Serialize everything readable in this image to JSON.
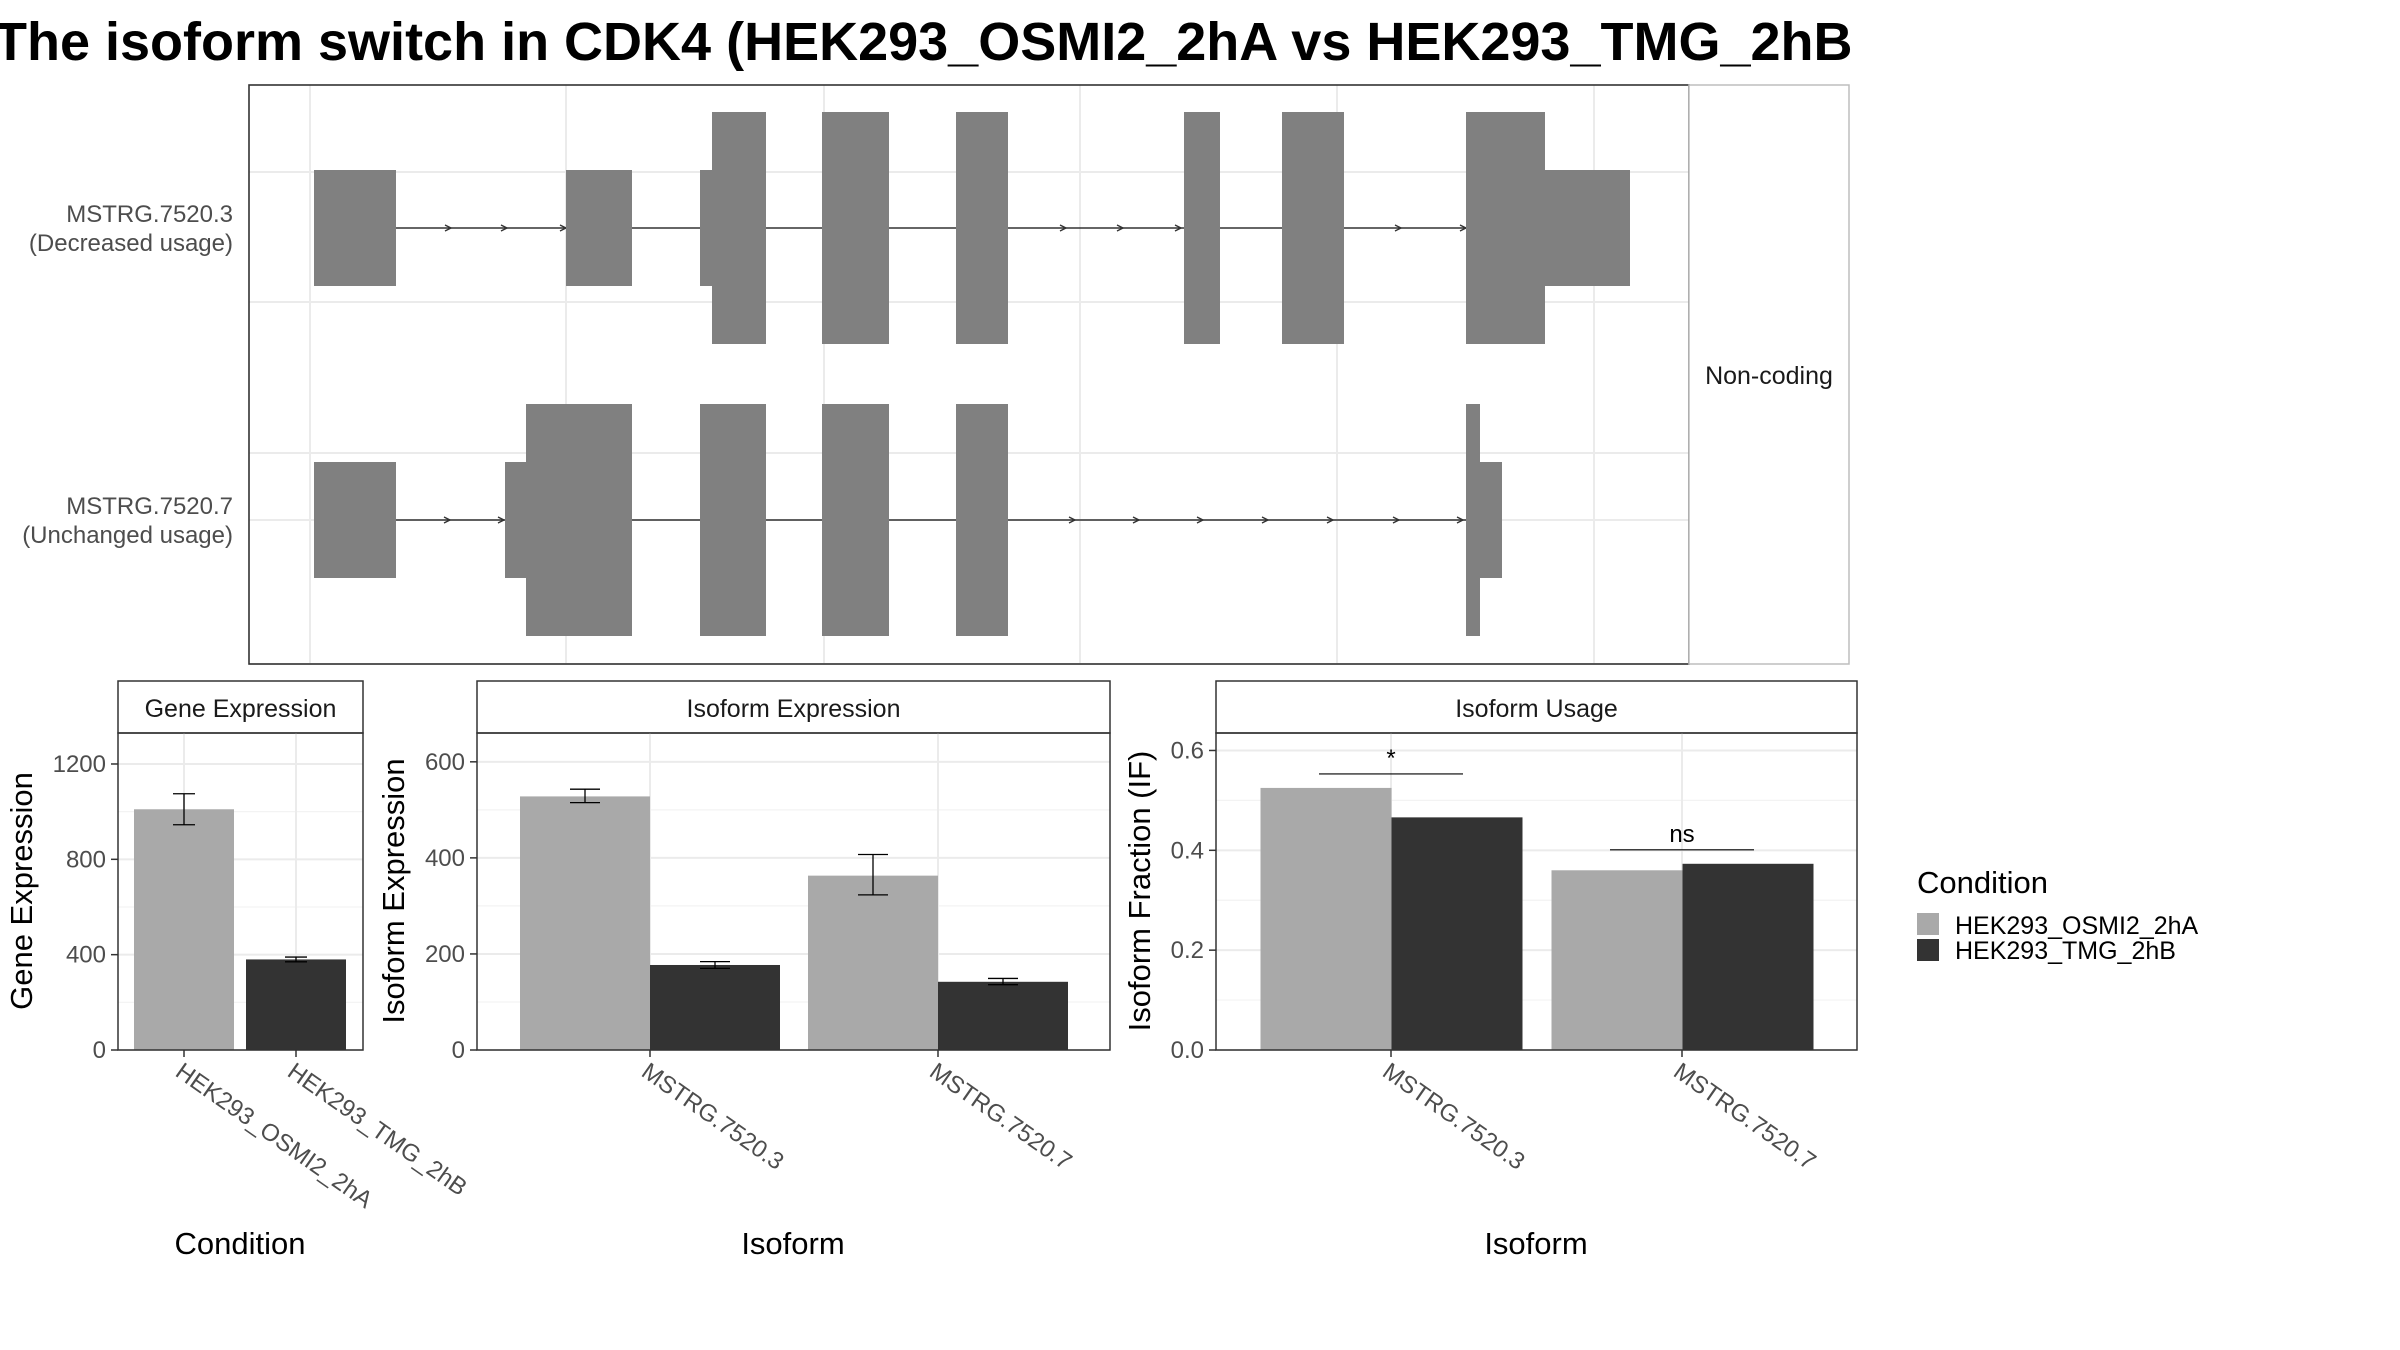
{
  "title": "The isoform switch in CDK4 (HEK293_OSMI2_2hA vs HEK293_TMG_2hB",
  "colors": {
    "exon": "#808080",
    "cond_a": "#a9a9a9",
    "cond_b": "#333333",
    "grid": "#ebebeb",
    "border": "#333333",
    "strip_fill": "#ffffff"
  },
  "legend": {
    "title": "Condition",
    "items": [
      "HEK293_OSMI2_2hA",
      "HEK293_TMG_2hB"
    ]
  },
  "structure": {
    "facet_label": "Non-coding",
    "isoforms": [
      {
        "id": "MSTRG.7520.3",
        "note": "(Decreased usage)"
      },
      {
        "id": "MSTRG.7520.7",
        "note": "(Unchanged usage)"
      }
    ]
  },
  "chart_data": [
    {
      "type": "bar",
      "facet": "Gene Expression",
      "xlabel": "Condition",
      "ylabel": "Gene Expression",
      "categories": [
        "HEK293_OSMI2_2hA",
        "HEK293_TMG_2hB"
      ],
      "values": [
        1010,
        380
      ],
      "errors": [
        [
          945,
          1075
        ],
        [
          370,
          390
        ]
      ],
      "yticks": [
        "0",
        "400",
        "800",
        "1200"
      ],
      "ylim": [
        0,
        1330
      ]
    },
    {
      "type": "bar",
      "facet": "Isoform Expression",
      "xlabel": "Isoform",
      "ylabel": "Isoform Expression",
      "categories": [
        "MSTRG.7520.3",
        "MSTRG.7520.7"
      ],
      "series": [
        {
          "name": "HEK293_OSMI2_2hA",
          "values": [
            528,
            363
          ],
          "errors": [
            [
              515,
              543
            ],
            [
              323,
              407
            ]
          ]
        },
        {
          "name": "HEK293_TMG_2hB",
          "values": [
            177,
            142
          ],
          "errors": [
            [
              170,
              184
            ],
            [
              136,
              149
            ]
          ]
        }
      ],
      "yticks": [
        "0",
        "200",
        "400",
        "600"
      ],
      "ylim": [
        0,
        660
      ]
    },
    {
      "type": "bar",
      "facet": "Isoform Usage",
      "xlabel": "Isoform",
      "ylabel": "Isoform Fraction (IF)",
      "categories": [
        "MSTRG.7520.3",
        "MSTRG.7520.7"
      ],
      "series": [
        {
          "name": "HEK293_OSMI2_2hA",
          "values": [
            0.525,
            0.36
          ]
        },
        {
          "name": "HEK293_TMG_2hB",
          "values": [
            0.466,
            0.373
          ]
        }
      ],
      "significance": [
        "*",
        "ns"
      ],
      "yticks": [
        "0.0",
        "0.2",
        "0.4",
        "0.6"
      ],
      "ylim": [
        0,
        0.635
      ]
    }
  ]
}
